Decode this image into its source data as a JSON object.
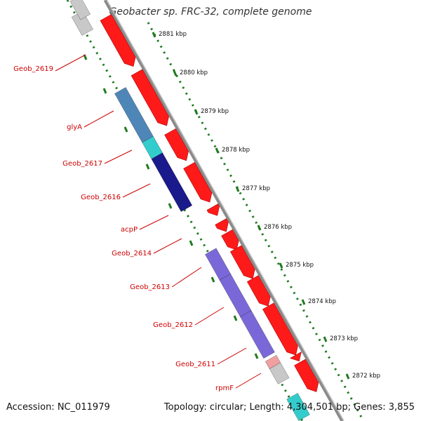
{
  "title": "Geobacter sp. FRC-32, complete genome",
  "accession_text": "Accession: NC_011979",
  "summary_text": "Topology: circular; Length: 4,304,501 bp; Genes: 3,855",
  "ticks": [
    "2881 kbp",
    "2880 kbp",
    "2879 kbp",
    "2878 kbp",
    "2877 kbp",
    "2876 kbp",
    "2875 kbp",
    "2874 kbp",
    "2873 kbp",
    "2872 kbp"
  ],
  "gene_labels": [
    "Geob_2619",
    "glyA",
    "Geob_2617",
    "Geob_2616",
    "acpP",
    "Geob_2614",
    "Geob_2613",
    "Geob_2612",
    "Geob_2611",
    "rpmF"
  ],
  "colors": {
    "forward_gene": "#ff1a1a",
    "backbone": "#888888",
    "tick_dots": "#1f7a1f",
    "label": "#cc0000",
    "gray_gene": "#c8c8c8",
    "steelblue_gene": "#4f86b8",
    "cyan_gene": "#33cccc",
    "navy_gene": "#1a1a8c",
    "slate_gene": "#7b68d8",
    "pink_gene": "#f0a0a0"
  }
}
